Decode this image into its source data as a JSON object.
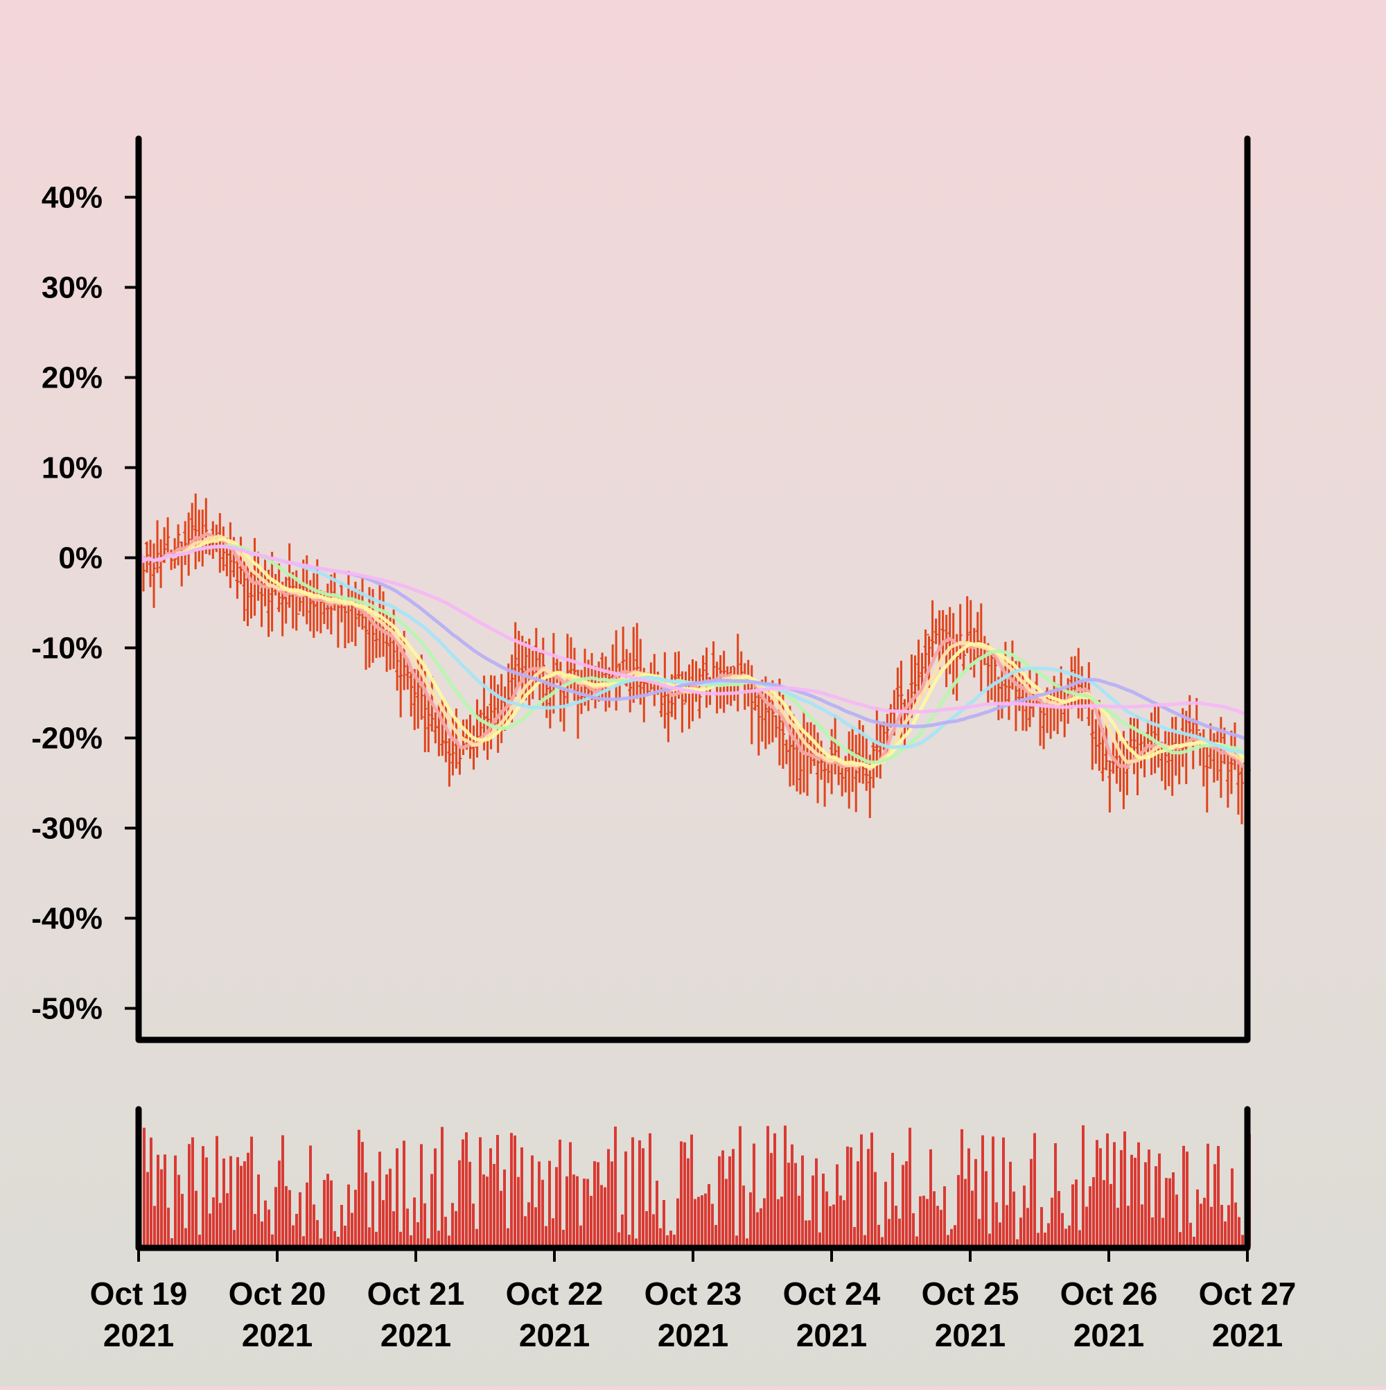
{
  "chart_data": {
    "type": "ohlc",
    "x_start": "2021-10-19",
    "x_end": "2021-10-27",
    "x_tick_labels": [
      [
        "Oct 19",
        "2021"
      ],
      [
        "Oct 20",
        "2021"
      ],
      [
        "Oct 21",
        "2021"
      ],
      [
        "Oct 22",
        "2021"
      ],
      [
        "Oct 23",
        "2021"
      ],
      [
        "Oct 24",
        "2021"
      ],
      [
        "Oct 25",
        "2021"
      ],
      [
        "Oct 26",
        "2021"
      ],
      [
        "Oct 27",
        "2021"
      ]
    ],
    "y_tick_values": [
      40,
      30,
      20,
      10,
      0,
      -10,
      -20,
      -30,
      -40,
      -50
    ],
    "y_tick_labels": [
      "40%",
      "30%",
      "20%",
      "10%",
      "0%",
      "-10%",
      "-20%",
      "-30%",
      "-40%",
      "-50%"
    ],
    "ylim": [
      -53.5,
      46.5
    ],
    "y_unit": "percent change",
    "bar_color": "#e0441c",
    "volume_color": "#d93a33",
    "close_anchors": [
      [
        0,
        0
      ],
      [
        0.25,
        1
      ],
      [
        0.5,
        3
      ],
      [
        0.75,
        -3
      ],
      [
        1,
        -4
      ],
      [
        1.25,
        -4
      ],
      [
        1.5,
        -6
      ],
      [
        1.75,
        -8
      ],
      [
        2,
        -15
      ],
      [
        2.25,
        -21
      ],
      [
        2.5,
        -19
      ],
      [
        2.75,
        -12
      ],
      [
        3,
        -14
      ],
      [
        3.25,
        -14
      ],
      [
        3.5,
        -13
      ],
      [
        3.75,
        -15
      ],
      [
        4,
        -14
      ],
      [
        4.25,
        -13
      ],
      [
        4.5,
        -17
      ],
      [
        4.75,
        -22
      ],
      [
        5,
        -23
      ],
      [
        5.25,
        -23
      ],
      [
        5.5,
        -16
      ],
      [
        5.75,
        -9
      ],
      [
        6,
        -10
      ],
      [
        6.25,
        -14
      ],
      [
        6.5,
        -16
      ],
      [
        6.75,
        -14
      ],
      [
        7,
        -23
      ],
      [
        7.25,
        -21
      ],
      [
        7.5,
        -20
      ],
      [
        7.75,
        -22
      ],
      [
        8,
        -24
      ]
    ],
    "moving_averages": [
      {
        "color": "#f5a6a6",
        "window": 6
      },
      {
        "color": "#ffe0a8",
        "window": 10
      },
      {
        "color": "#fff7a0",
        "window": 14
      },
      {
        "color": "#b8f5b0",
        "window": 24
      },
      {
        "color": "#a8e4f5",
        "window": 40
      },
      {
        "color": "#b8b0f5",
        "window": 60
      },
      {
        "color": "#f5b8f5",
        "window": 90
      }
    ]
  }
}
